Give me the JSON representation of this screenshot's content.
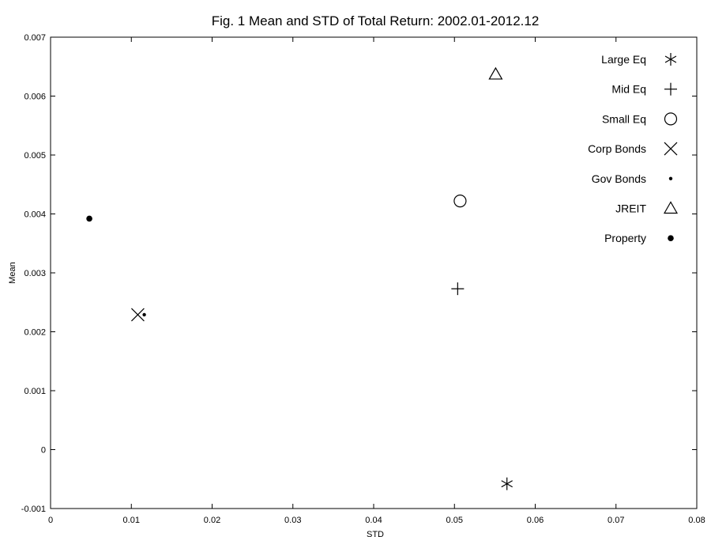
{
  "chart_data": {
    "type": "scatter",
    "title": "Fig. 1  Mean and STD of Total Return: 2002.01-2012.12",
    "xlabel": "STD",
    "ylabel": "Mean",
    "xlim": [
      0,
      0.08
    ],
    "ylim": [
      -0.001,
      0.007
    ],
    "x_ticks": [
      "0",
      "0.01",
      "0.02",
      "0.03",
      "0.04",
      "0.05",
      "0.06",
      "0.07",
      "0.08"
    ],
    "y_ticks": [
      "-0.001",
      "0",
      "0.001",
      "0.002",
      "0.003",
      "0.004",
      "0.005",
      "0.006",
      "0.007"
    ],
    "grid": false,
    "legend_position": "top-right",
    "series": [
      {
        "name": "Large Eq",
        "marker": "asterisk",
        "x": 0.0565,
        "y": -0.00058
      },
      {
        "name": "Mid Eq",
        "marker": "plus",
        "x": 0.0504,
        "y": 0.00273
      },
      {
        "name": "Small Eq",
        "marker": "circle",
        "x": 0.0507,
        "y": 0.00422
      },
      {
        "name": "Corp Bonds",
        "marker": "x",
        "x": 0.0108,
        "y": 0.00229
      },
      {
        "name": "Gov Bonds",
        "marker": "small-dot",
        "x": 0.0116,
        "y": 0.00229
      },
      {
        "name": "JREIT",
        "marker": "triangle",
        "x": 0.0551,
        "y": 0.00637
      },
      {
        "name": "Property",
        "marker": "filled-circle",
        "x": 0.0048,
        "y": 0.00392
      }
    ]
  }
}
